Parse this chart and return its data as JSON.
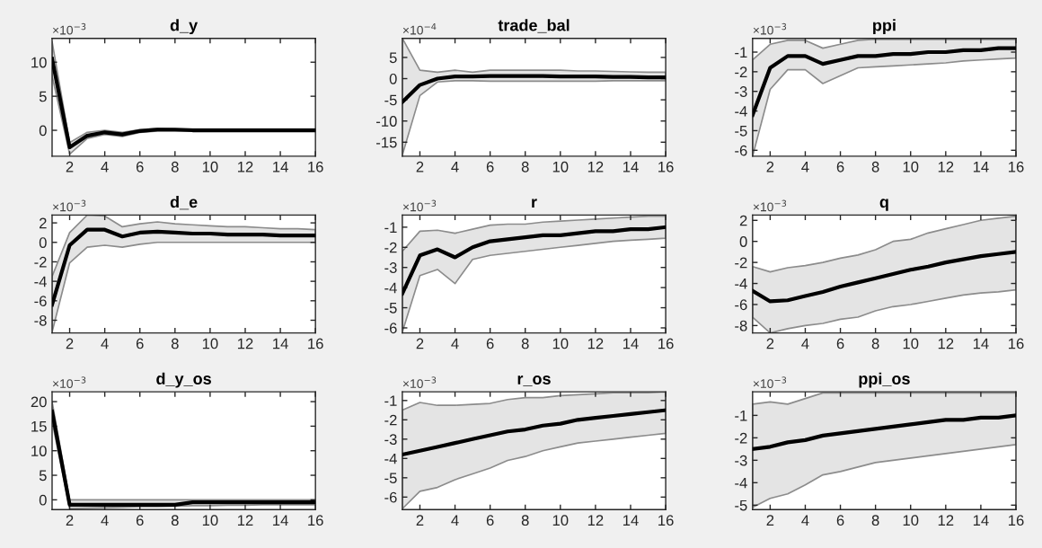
{
  "chart_data": [
    {
      "type": "line",
      "title": "d_y",
      "annotations": [
        "×10$^{−3}$"
      ],
      "x": [
        1,
        2,
        3,
        4,
        5,
        6,
        7,
        8,
        9,
        10,
        11,
        12,
        13,
        14,
        15,
        16
      ],
      "xlim": [
        1,
        16
      ],
      "xticks": [
        2,
        4,
        6,
        8,
        10,
        12,
        14,
        16
      ],
      "ylim": [
        -3.8,
        13.5
      ],
      "yticks": [
        0,
        5,
        10
      ],
      "grid": false,
      "series": [
        {
          "color": "#000000",
          "values": [
            10.5,
            -2.5,
            -0.8,
            -0.3,
            -0.6,
            -0.1,
            0.1,
            0.1,
            0,
            0,
            0,
            0,
            0,
            0,
            0,
            0
          ],
          "lower": [
            8,
            -3.5,
            -1.2,
            -0.6,
            -0.9,
            -0.3,
            -0.1,
            -0.1,
            -0.1,
            -0.1,
            -0.1,
            -0.1,
            -0.1,
            -0.1,
            -0.1,
            -0.1
          ],
          "upper": [
            13,
            -1.8,
            -0.3,
            0,
            -0.3,
            0.1,
            0.3,
            0.2,
            0.2,
            0.2,
            0.2,
            0.2,
            0.2,
            0.2,
            0.2,
            0.2
          ]
        }
      ]
    },
    {
      "type": "line",
      "title": "trade_bal",
      "annotations": [
        "×10$^{−4}$"
      ],
      "x": [
        1,
        2,
        3,
        4,
        5,
        6,
        7,
        8,
        9,
        10,
        11,
        12,
        13,
        14,
        15,
        16
      ],
      "xlim": [
        1,
        16
      ],
      "xticks": [
        2,
        4,
        6,
        8,
        10,
        12,
        14,
        16
      ],
      "ylim": [
        -18.3,
        9.5
      ],
      "yticks": [
        -15,
        -10,
        -5,
        0,
        5
      ],
      "grid": false,
      "series": [
        {
          "color": "#000000",
          "values": [
            -5.5,
            -1.5,
            0,
            0.5,
            0.5,
            0.6,
            0.6,
            0.6,
            0.6,
            0.5,
            0.5,
            0.5,
            0.4,
            0.4,
            0.3,
            0.3
          ],
          "lower": [
            -18,
            -4,
            -0.8,
            -0.5,
            -0.5,
            -0.6,
            -0.6,
            -0.6,
            -0.6,
            -0.6,
            -0.6,
            -0.6,
            -0.5,
            -0.5,
            -0.5,
            -0.5
          ],
          "upper": [
            9.5,
            2,
            1.5,
            2,
            1.5,
            2,
            2,
            2,
            2,
            2,
            1.8,
            1.8,
            1.7,
            1.6,
            1.5,
            1.5
          ]
        }
      ]
    },
    {
      "type": "line",
      "title": "ppi",
      "annotations": [
        "×10$^{−3}$"
      ],
      "x": [
        1,
        2,
        3,
        4,
        5,
        6,
        7,
        8,
        9,
        10,
        11,
        12,
        13,
        14,
        15,
        16
      ],
      "xlim": [
        1,
        16
      ],
      "xticks": [
        2,
        4,
        6,
        8,
        10,
        12,
        14,
        16
      ],
      "ylim": [
        -6.3,
        -0.3
      ],
      "yticks": [
        -6,
        -5,
        -4,
        -3,
        -2,
        -1
      ],
      "grid": false,
      "series": [
        {
          "color": "#000000",
          "values": [
            -4.2,
            -1.8,
            -1.2,
            -1.2,
            -1.6,
            -1.4,
            -1.2,
            -1.2,
            -1.1,
            -1.1,
            -1.0,
            -1.0,
            -0.9,
            -0.9,
            -0.8,
            -0.8
          ],
          "lower": [
            -6.3,
            -2.9,
            -1.9,
            -1.9,
            -2.6,
            -2.2,
            -1.8,
            -1.75,
            -1.7,
            -1.65,
            -1.6,
            -1.55,
            -1.45,
            -1.4,
            -1.35,
            -1.3
          ],
          "upper": [
            -1.4,
            -0.6,
            -0.4,
            -0.4,
            -0.8,
            -0.6,
            -0.4,
            -0.35,
            -0.35,
            -0.35,
            -0.35,
            -0.35,
            -0.35,
            -0.35,
            -0.35,
            -0.35
          ]
        }
      ]
    },
    {
      "type": "line",
      "title": "d_e",
      "annotations": [
        "×10$^{−3}$"
      ],
      "x": [
        1,
        2,
        3,
        4,
        5,
        6,
        7,
        8,
        9,
        10,
        11,
        12,
        13,
        14,
        15,
        16
      ],
      "xlim": [
        1,
        16
      ],
      "xticks": [
        2,
        4,
        6,
        8,
        10,
        12,
        14,
        16
      ],
      "ylim": [
        -9.3,
        2.8
      ],
      "yticks": [
        -8,
        -6,
        -4,
        -2,
        0,
        2
      ],
      "grid": false,
      "series": [
        {
          "color": "#000000",
          "values": [
            -6.4,
            -0.3,
            1.3,
            1.3,
            0.6,
            1.0,
            1.1,
            1.0,
            0.9,
            0.9,
            0.8,
            0.8,
            0.8,
            0.7,
            0.7,
            0.7
          ],
          "lower": [
            -9.2,
            -2.1,
            -0.5,
            -0.3,
            -0.5,
            -0.2,
            0,
            0,
            0,
            0,
            0,
            0,
            0,
            0,
            0,
            0
          ],
          "upper": [
            -3.5,
            1.0,
            2.8,
            2.7,
            1.6,
            1.9,
            2.1,
            1.9,
            1.8,
            1.7,
            1.6,
            1.6,
            1.5,
            1.4,
            1.4,
            1.3
          ]
        }
      ]
    },
    {
      "type": "line",
      "title": "r",
      "annotations": [
        "×10$^{−3}$"
      ],
      "x": [
        1,
        2,
        3,
        4,
        5,
        6,
        7,
        8,
        9,
        10,
        11,
        12,
        13,
        14,
        15,
        16
      ],
      "xlim": [
        1,
        16
      ],
      "xticks": [
        2,
        4,
        6,
        8,
        10,
        12,
        14,
        16
      ],
      "ylim": [
        -6.25,
        -0.4
      ],
      "yticks": [
        -6,
        -5,
        -4,
        -3,
        -2,
        -1
      ],
      "grid": false,
      "series": [
        {
          "color": "#000000",
          "values": [
            -4.3,
            -2.4,
            -2.1,
            -2.5,
            -2.0,
            -1.7,
            -1.6,
            -1.5,
            -1.4,
            -1.4,
            -1.3,
            -1.2,
            -1.2,
            -1.1,
            -1.1,
            -1.0
          ],
          "lower": [
            -6.2,
            -3.4,
            -3.1,
            -3.8,
            -2.6,
            -2.4,
            -2.3,
            -2.2,
            -2.1,
            -2.0,
            -1.9,
            -1.8,
            -1.7,
            -1.65,
            -1.6,
            -1.55
          ],
          "upper": [
            -2.2,
            -1.2,
            -1.15,
            -1.3,
            -1.1,
            -0.9,
            -0.85,
            -0.85,
            -0.75,
            -0.7,
            -0.65,
            -0.6,
            -0.55,
            -0.5,
            -0.45,
            -0.45
          ]
        }
      ]
    },
    {
      "type": "line",
      "title": "q",
      "annotations": [
        "×10$^{−3}$"
      ],
      "x": [
        1,
        2,
        3,
        4,
        5,
        6,
        7,
        8,
        9,
        10,
        11,
        12,
        13,
        14,
        15,
        16
      ],
      "xlim": [
        1,
        16
      ],
      "xticks": [
        2,
        4,
        6,
        8,
        10,
        12,
        14,
        16
      ],
      "ylim": [
        -8.7,
        2.5
      ],
      "yticks": [
        -8,
        -6,
        -4,
        -2,
        0,
        2
      ],
      "grid": false,
      "series": [
        {
          "color": "#000000",
          "values": [
            -4.7,
            -5.7,
            -5.6,
            -5.2,
            -4.8,
            -4.3,
            -3.9,
            -3.5,
            -3.1,
            -2.7,
            -2.4,
            -2.0,
            -1.7,
            -1.4,
            -1.2,
            -1.0
          ],
          "lower": [
            -7.2,
            -8.7,
            -8.3,
            -8.0,
            -7.8,
            -7.4,
            -7.2,
            -6.6,
            -6.2,
            -6.0,
            -5.7,
            -5.4,
            -5.1,
            -4.9,
            -4.8,
            -4.6
          ],
          "upper": [
            -2.4,
            -2.9,
            -2.5,
            -2.3,
            -2.0,
            -1.6,
            -1.3,
            -0.8,
            0,
            0.2,
            0.8,
            1.2,
            1.6,
            2.0,
            2.2,
            2.4
          ]
        }
      ]
    },
    {
      "type": "line",
      "title": "d_y_os",
      "annotations": [
        "×10$^{−3}$"
      ],
      "x": [
        1,
        2,
        3,
        4,
        5,
        6,
        7,
        8,
        9,
        10,
        11,
        12,
        13,
        14,
        15,
        16
      ],
      "xlim": [
        1,
        16
      ],
      "xticks": [
        2,
        4,
        6,
        8,
        10,
        12,
        14,
        16
      ],
      "ylim": [
        -2,
        22
      ],
      "yticks": [
        0,
        5,
        10,
        15,
        20
      ],
      "grid": false,
      "series": [
        {
          "color": "#000000",
          "values": [
            18,
            -1,
            -1,
            -1,
            -1,
            -1,
            -1,
            -1,
            -0.5,
            -0.5,
            -0.5,
            -0.5,
            -0.5,
            -0.5,
            -0.5,
            -0.5
          ],
          "lower": [
            16,
            -1.8,
            -1.7,
            -1.6,
            -1.5,
            -1.4,
            -1.4,
            -1.3,
            -1.2,
            -1.2,
            -1.1,
            -1.1,
            -1,
            -1,
            -1,
            -1
          ],
          "upper": [
            20,
            0,
            0,
            0,
            0,
            0,
            0,
            0,
            0,
            0,
            0,
            0,
            0,
            0,
            0,
            0
          ]
        }
      ]
    },
    {
      "type": "line",
      "title": "r_os",
      "annotations": [
        "×10$^{−3}$"
      ],
      "x": [
        1,
        2,
        3,
        4,
        5,
        6,
        7,
        8,
        9,
        10,
        11,
        12,
        13,
        14,
        15,
        16
      ],
      "xlim": [
        1,
        16
      ],
      "xticks": [
        2,
        4,
        6,
        8,
        10,
        12,
        14,
        16
      ],
      "ylim": [
        -6.65,
        -0.55
      ],
      "yticks": [
        -6,
        -5,
        -4,
        -3,
        -2,
        -1
      ],
      "grid": false,
      "series": [
        {
          "color": "#000000",
          "values": [
            -3.8,
            -3.6,
            -3.4,
            -3.2,
            -3.0,
            -2.8,
            -2.6,
            -2.5,
            -2.3,
            -2.2,
            -2.0,
            -1.9,
            -1.8,
            -1.7,
            -1.6,
            -1.5
          ],
          "lower": [
            -6.6,
            -5.7,
            -5.5,
            -5.1,
            -4.8,
            -4.5,
            -4.1,
            -3.9,
            -3.6,
            -3.4,
            -3.2,
            -3.1,
            -3.0,
            -2.9,
            -2.8,
            -2.7
          ],
          "upper": [
            -1.5,
            -1.1,
            -1.25,
            -1.25,
            -1.2,
            -1.15,
            -0.95,
            -0.85,
            -0.85,
            -0.75,
            -0.7,
            -0.65,
            -0.6,
            -0.6,
            -0.6,
            -0.55
          ]
        }
      ]
    },
    {
      "type": "line",
      "title": "ppi_os",
      "annotations": [
        "×10$^{−3}$"
      ],
      "x": [
        1,
        2,
        3,
        4,
        5,
        6,
        7,
        8,
        9,
        10,
        11,
        12,
        13,
        14,
        15,
        16
      ],
      "xlim": [
        1,
        16
      ],
      "xticks": [
        2,
        4,
        6,
        8,
        10,
        12,
        14,
        16
      ],
      "ylim": [
        -5.2,
        0.05
      ],
      "yticks": [
        -5,
        -4,
        -3,
        -2,
        -1
      ],
      "grid": false,
      "series": [
        {
          "color": "#000000",
          "values": [
            -2.5,
            -2.4,
            -2.2,
            -2.1,
            -1.9,
            -1.8,
            -1.7,
            -1.6,
            -1.5,
            -1.4,
            -1.3,
            -1.2,
            -1.2,
            -1.1,
            -1.1,
            -1.0
          ],
          "lower": [
            -5.1,
            -4.7,
            -4.5,
            -4.1,
            -3.65,
            -3.5,
            -3.3,
            -3.1,
            -3.0,
            -2.9,
            -2.8,
            -2.7,
            -2.6,
            -2.5,
            -2.4,
            -2.3
          ],
          "upper": [
            -0.5,
            -0.4,
            -0.5,
            -0.25,
            0,
            0,
            0,
            0,
            0,
            0,
            0,
            0,
            0,
            0,
            0,
            0
          ]
        }
      ]
    }
  ]
}
